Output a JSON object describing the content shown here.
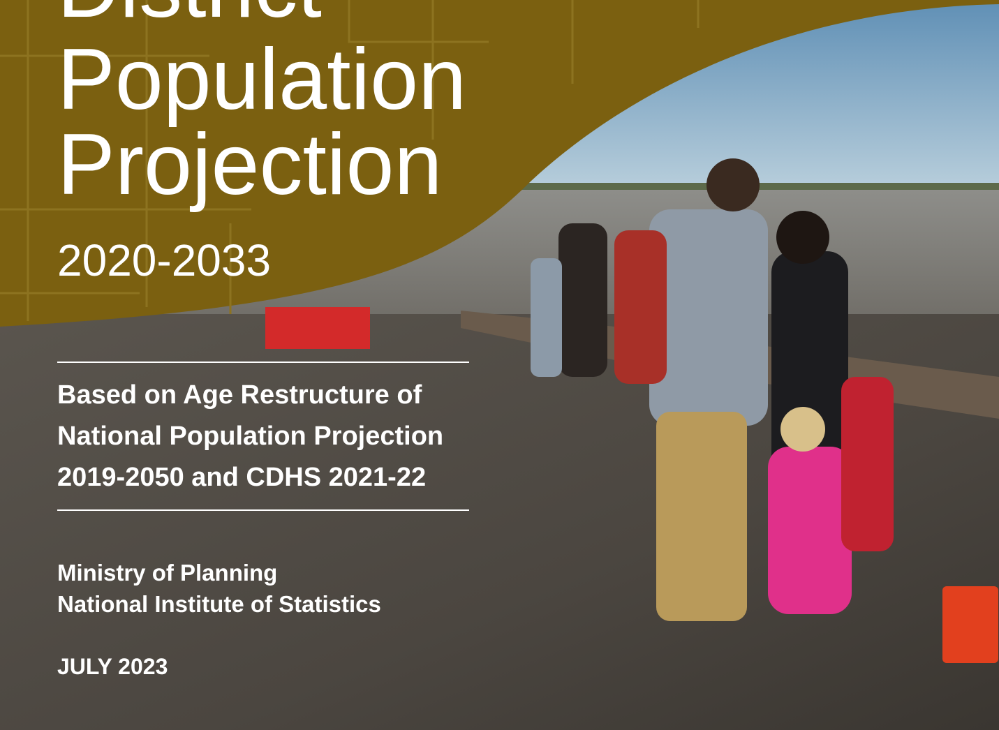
{
  "cover": {
    "title_lines": [
      "District",
      "Population",
      "Projection"
    ],
    "years": "2020-2033",
    "subtitle_lines": [
      "Based on Age Restructure of",
      "National Population Projection",
      "2019-2050 and CDHS 2021-22"
    ],
    "publisher_lines": [
      "Ministry of Planning",
      "National Institute of Statistics"
    ],
    "date": "JULY 2023"
  }
}
